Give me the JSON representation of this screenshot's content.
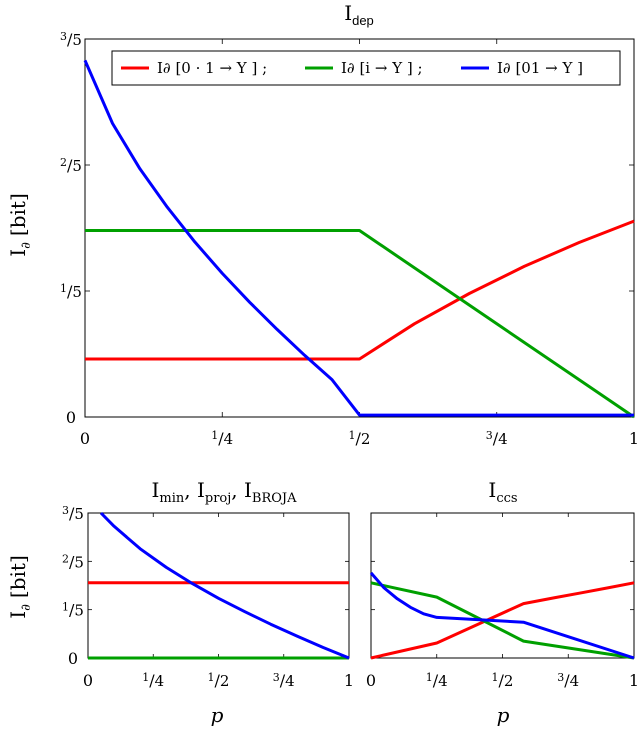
{
  "chart_data": [
    {
      "type": "line",
      "title": "I",
      "title_sub": "dep",
      "ylabel": "I",
      "ylabel_sub": "∂",
      "ylabel_unit": "[bit]",
      "xlabel": "",
      "xlim": [
        0,
        1
      ],
      "ylim": [
        0,
        0.6
      ],
      "xticks": [
        {
          "v": 0,
          "t": "0"
        },
        {
          "v": 0.25,
          "t": "1/4"
        },
        {
          "v": 0.5,
          "t": "1/2"
        },
        {
          "v": 0.75,
          "t": "3/4"
        },
        {
          "v": 1,
          "t": "1"
        }
      ],
      "yticks": [
        {
          "v": 0,
          "t": "0"
        },
        {
          "v": 0.2,
          "t": "1/5"
        },
        {
          "v": 0.4,
          "t": "2/5"
        },
        {
          "v": 0.6,
          "t": "3/5"
        }
      ],
      "legend_position": "top",
      "series": [
        {
          "name": "I∂ [0 · 1 → Y ] ;",
          "color": "#ff0000",
          "x": [
            0,
            0.5,
            0.6,
            0.7,
            0.8,
            0.9,
            1.0
          ],
          "y": [
            0.092,
            0.092,
            0.148,
            0.196,
            0.239,
            0.277,
            0.311
          ]
        },
        {
          "name": "I∂ [i → Y ] ;",
          "color": "#00a000",
          "x": [
            0,
            0.5,
            1.0
          ],
          "y": [
            0.296,
            0.296,
            0.0
          ]
        },
        {
          "name": "I∂ [01 → Y ]",
          "color": "#0000ff",
          "x": [
            0,
            0.05,
            0.1,
            0.15,
            0.2,
            0.25,
            0.3,
            0.35,
            0.4,
            0.45,
            0.5,
            1.0
          ],
          "y": [
            0.566,
            0.466,
            0.394,
            0.333,
            0.278,
            0.228,
            0.182,
            0.139,
            0.098,
            0.059,
            0.003,
            0.003
          ]
        }
      ]
    },
    {
      "type": "line",
      "title": "I",
      "title_parts": [
        {
          "base": "I",
          "sub": "min"
        },
        {
          "base": "I",
          "sub": "proj"
        },
        {
          "base": "I",
          "sub": "BROJA"
        }
      ],
      "ylabel": "I",
      "ylabel_sub": "∂",
      "ylabel_unit": "[bit]",
      "xlabel": "p",
      "xlim": [
        0,
        1
      ],
      "ylim": [
        0,
        0.6
      ],
      "xticks": [
        {
          "v": 0,
          "t": "0"
        },
        {
          "v": 0.25,
          "t": "1/4"
        },
        {
          "v": 0.5,
          "t": "1/2"
        },
        {
          "v": 0.75,
          "t": "3/4"
        },
        {
          "v": 1,
          "t": "1"
        }
      ],
      "yticks": [
        {
          "v": 0,
          "t": "0"
        },
        {
          "v": 0.2,
          "t": "1/5"
        },
        {
          "v": 0.4,
          "t": "2/5"
        },
        {
          "v": 0.6,
          "t": "3/5"
        }
      ],
      "series": [
        {
          "color": "#ff0000",
          "x": [
            0,
            1
          ],
          "y": [
            0.311,
            0.311
          ]
        },
        {
          "color": "#00a000",
          "x": [
            0,
            1
          ],
          "y": [
            0.0,
            0.0
          ]
        },
        {
          "color": "#0000ff",
          "x": [
            0.05,
            0.1,
            0.2,
            0.3,
            0.4,
            0.5,
            0.6,
            0.7,
            0.8,
            0.9,
            1.0
          ],
          "y": [
            0.6,
            0.545,
            0.452,
            0.375,
            0.308,
            0.247,
            0.192,
            0.14,
            0.091,
            0.044,
            0.0
          ]
        }
      ]
    },
    {
      "type": "line",
      "title": "I",
      "title_sub": "ccs",
      "xlabel": "p",
      "xlim": [
        0,
        1
      ],
      "ylim": [
        0,
        0.6
      ],
      "xticks": [
        {
          "v": 0,
          "t": "0"
        },
        {
          "v": 0.25,
          "t": "1/4"
        },
        {
          "v": 0.5,
          "t": "1/2"
        },
        {
          "v": 0.75,
          "t": "3/4"
        },
        {
          "v": 1,
          "t": "1"
        }
      ],
      "series": [
        {
          "color": "#ff0000",
          "x": [
            0,
            0.25,
            0.58,
            0.7,
            0.8,
            0.9,
            1.0
          ],
          "y": [
            0.0,
            0.062,
            0.225,
            0.25,
            0.27,
            0.29,
            0.311
          ]
        },
        {
          "color": "#00a000",
          "x": [
            0,
            0.25,
            0.58,
            1.0
          ],
          "y": [
            0.311,
            0.252,
            0.07,
            0.0
          ]
        },
        {
          "color": "#0000ff",
          "x": [
            0,
            0.05,
            0.1,
            0.15,
            0.2,
            0.25,
            0.58,
            1.0
          ],
          "y": [
            0.352,
            0.29,
            0.245,
            0.21,
            0.183,
            0.168,
            0.148,
            0.0
          ]
        }
      ]
    }
  ]
}
